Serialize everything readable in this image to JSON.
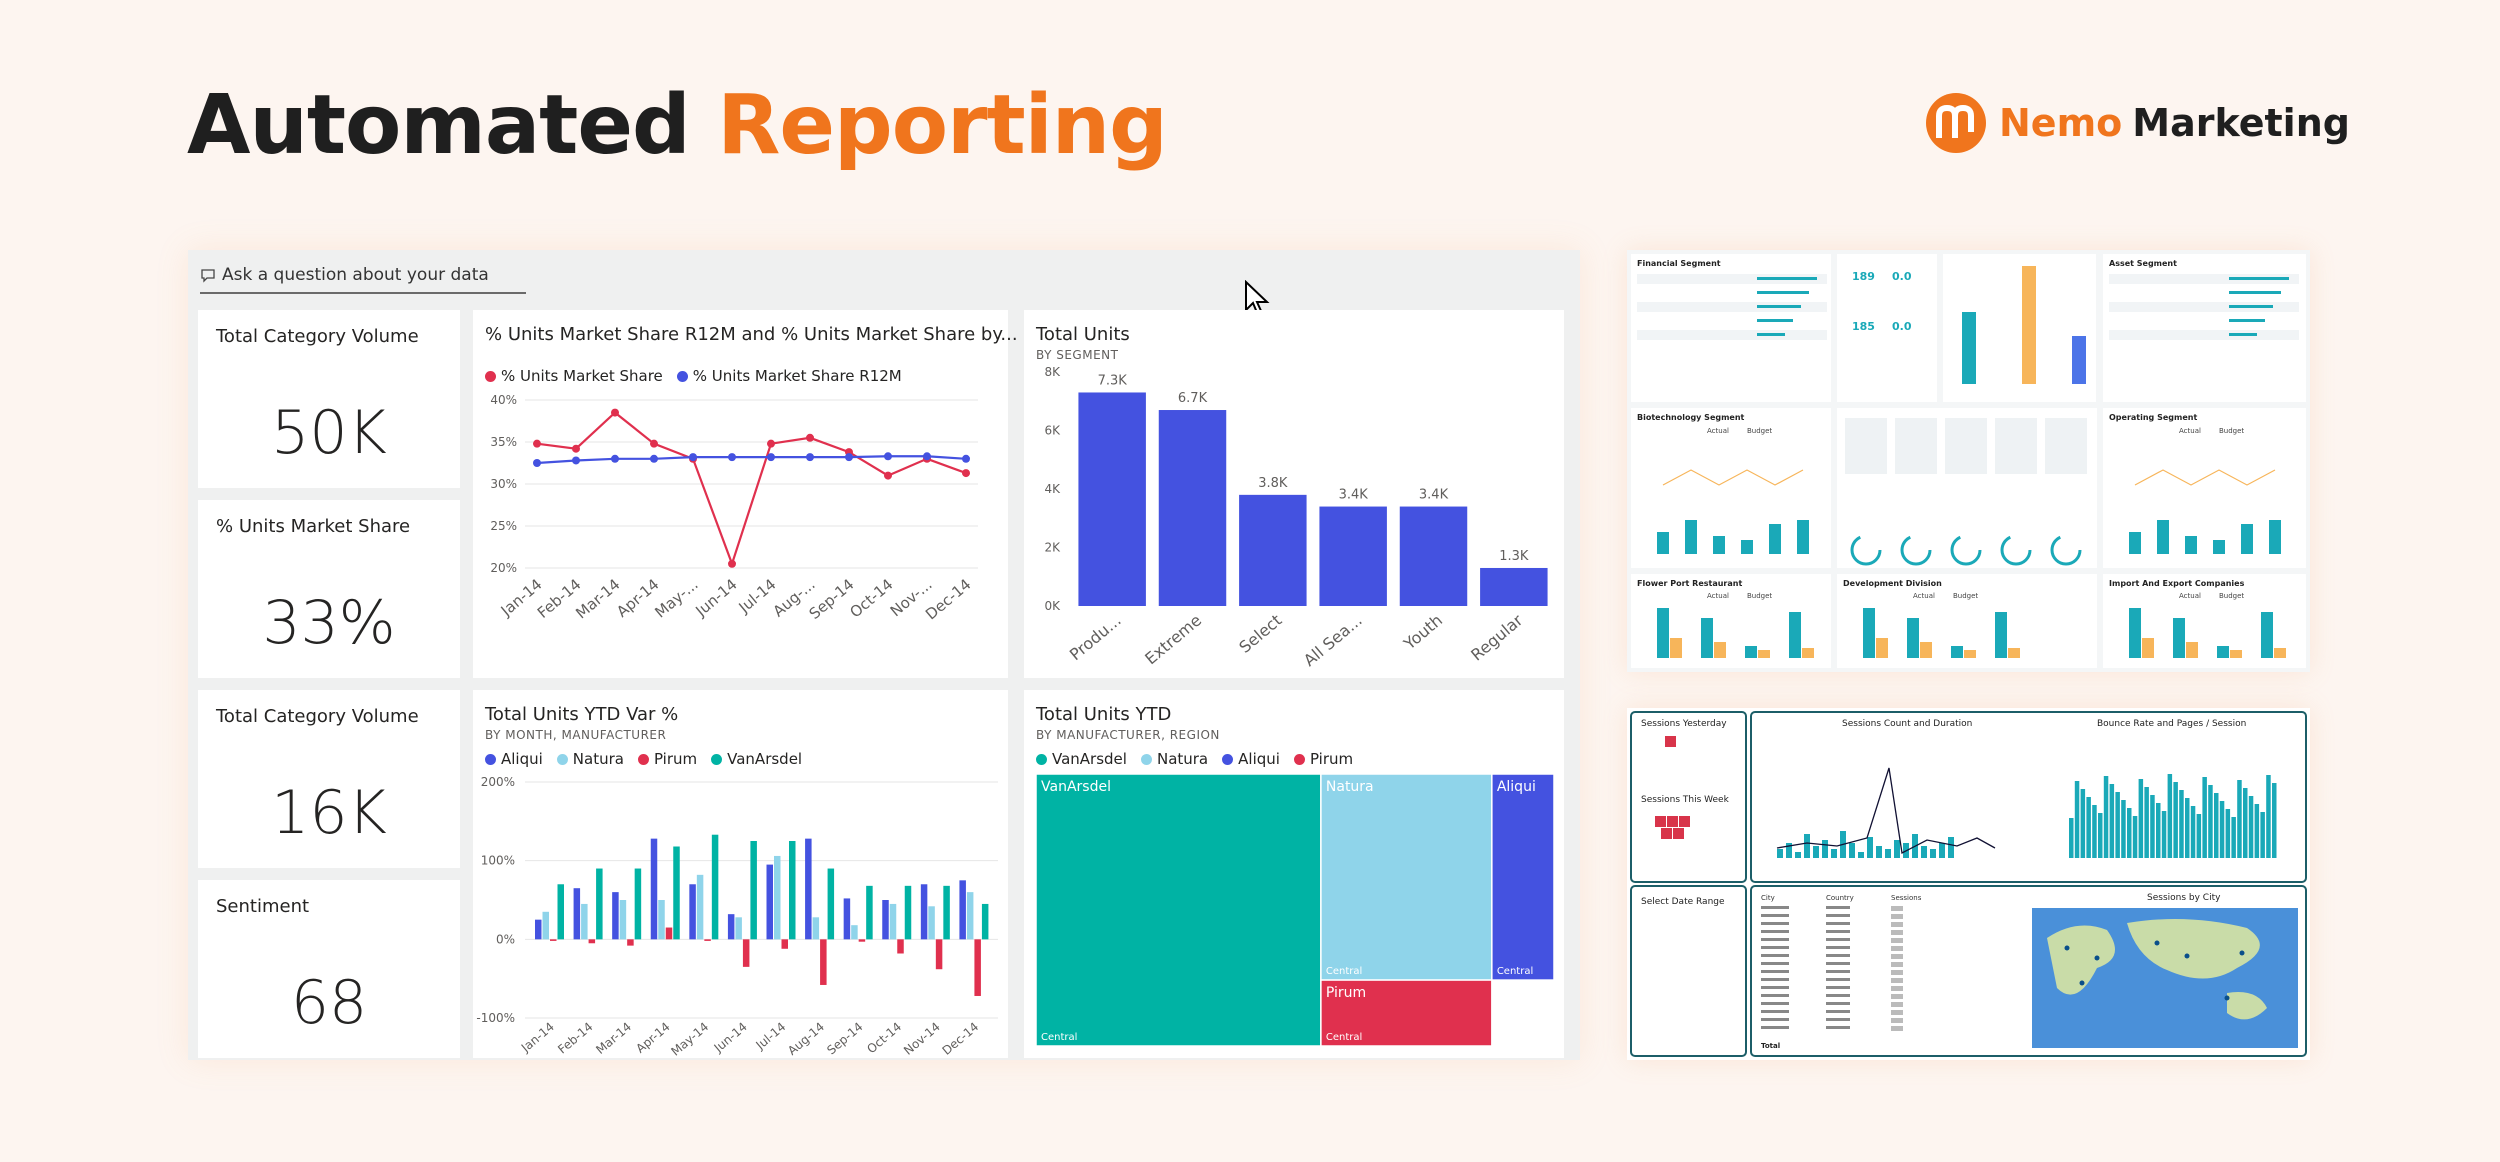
{
  "header": {
    "title_part1": "Automated",
    "title_part2": "Reporting",
    "brand_part1": "Nemo",
    "brand_part2": "Marketing"
  },
  "colors": {
    "accent": "#f0751d",
    "blue": "#4452e0",
    "red": "#e0304e",
    "teal": "#00b3a4",
    "lightblue": "#8fd4ea",
    "dark": "#1f1f1f"
  },
  "qa": {
    "icon": "speech-bubble-icon",
    "placeholder": "Ask a question about your data"
  },
  "kpis": [
    {
      "title": "Total Category Volume",
      "value": "50K"
    },
    {
      "title": "% Units Market Share",
      "value": "33%"
    },
    {
      "title": "Total Category Volume",
      "value": "16K"
    },
    {
      "title": "Sentiment",
      "value": "68"
    }
  ],
  "charts": [
    {
      "type": "line",
      "title": "% Units Market Share R12M and % Units Market Share by...",
      "categories": [
        "Jan-14",
        "Feb-14",
        "Mar-14",
        "Apr-14",
        "May-...",
        "Jun-14",
        "Jul-14",
        "Aug-...",
        "Sep-14",
        "Oct-14",
        "Nov-...",
        "Dec-14"
      ],
      "series": [
        {
          "name": "% Units Market Share",
          "color": "#e0304e",
          "values": [
            34.8,
            34.2,
            38.5,
            34.8,
            33.0,
            20.5,
            34.8,
            35.5,
            33.8,
            31.0,
            33.0,
            31.3
          ]
        },
        {
          "name": "% Units Market Share R12M",
          "color": "#4452e0",
          "values": [
            32.5,
            32.8,
            33.0,
            33.0,
            33.2,
            33.2,
            33.2,
            33.2,
            33.2,
            33.3,
            33.3,
            33.0
          ]
        }
      ],
      "y_ticks": [
        "40%",
        "35%",
        "30%",
        "25%",
        "20%"
      ],
      "ylim": [
        20,
        40
      ]
    },
    {
      "type": "bar",
      "title": "Total Units",
      "subtitle": "BY SEGMENT",
      "categories": [
        "Produ...",
        "Extreme",
        "Select",
        "All Sea...",
        "Youth",
        "Regular"
      ],
      "values": [
        7300,
        6700,
        3800,
        3400,
        3400,
        1300
      ],
      "data_labels": [
        "7.3K",
        "6.7K",
        "3.8K",
        "3.4K",
        "3.4K",
        "1.3K"
      ],
      "y_ticks": [
        "8K",
        "6K",
        "4K",
        "2K",
        "0K"
      ],
      "ylim": [
        0,
        8000
      ],
      "color": "#4452e0"
    },
    {
      "type": "bar",
      "title": "Total Units YTD Var %",
      "subtitle": "BY MONTH, MANUFACTURER",
      "categories": [
        "Jan-14",
        "Feb-14",
        "Mar-14",
        "Apr-14",
        "May-14",
        "Jun-14",
        "Jul-14",
        "Aug-14",
        "Sep-14",
        "Oct-14",
        "Nov-14",
        "Dec-14"
      ],
      "series": [
        {
          "name": "Aliqui",
          "color": "#4452e0",
          "values": [
            25,
            65,
            60,
            128,
            70,
            32,
            95,
            128,
            52,
            50,
            70,
            75
          ]
        },
        {
          "name": "Natura",
          "color": "#8fd4ea",
          "values": [
            35,
            45,
            50,
            50,
            82,
            28,
            106,
            28,
            18,
            45,
            42,
            60
          ]
        },
        {
          "name": "Pirum",
          "color": "#e0304e",
          "values": [
            -2,
            -5,
            -8,
            15,
            -2,
            -35,
            -12,
            -58,
            -3,
            -18,
            -38,
            -72
          ]
        },
        {
          "name": "VanArsdel",
          "color": "#00b3a4",
          "values": [
            70,
            90,
            90,
            118,
            133,
            125,
            125,
            90,
            68,
            68,
            68,
            45
          ]
        }
      ],
      "y_ticks": [
        "200%",
        "100%",
        "0%",
        "-100%"
      ],
      "ylim": [
        -100,
        200
      ]
    },
    {
      "type": "treemap",
      "title": "Total Units YTD",
      "subtitle": "BY MANUFACTURER, REGION",
      "legend": [
        {
          "name": "VanArsdel",
          "color": "#00b3a4"
        },
        {
          "name": "Natura",
          "color": "#8fd4ea"
        },
        {
          "name": "Aliqui",
          "color": "#4452e0"
        },
        {
          "name": "Pirum",
          "color": "#e0304e"
        }
      ],
      "tiles": [
        {
          "name": "VanArsdel",
          "region": "Central",
          "share": 0.55
        },
        {
          "name": "Natura",
          "region": "Central",
          "share": 0.25
        },
        {
          "name": "Aliqui",
          "region": "Central",
          "share": 0.12
        },
        {
          "name": "Pirum",
          "region": "Central",
          "share": 0.08
        }
      ]
    }
  ],
  "thumb1": {
    "panels": [
      "Financial Segment",
      "Asset Segment",
      "Biotechnology Segment",
      "Operating Segment",
      "Flower Port Restaurant",
      "Development Division",
      "Import And Export Companies"
    ],
    "legend": [
      "Actual",
      "Budget"
    ]
  },
  "thumb2": {
    "panels": [
      "Sessions Yesterday",
      "Sessions This Week",
      "Sessions Count and Duration",
      "Bounce Rate and Pages / Session",
      "Select Date Range",
      "Sessions by City"
    ],
    "table_headers": [
      "City",
      "Country",
      "Sessions"
    ],
    "table_total": "Total"
  }
}
